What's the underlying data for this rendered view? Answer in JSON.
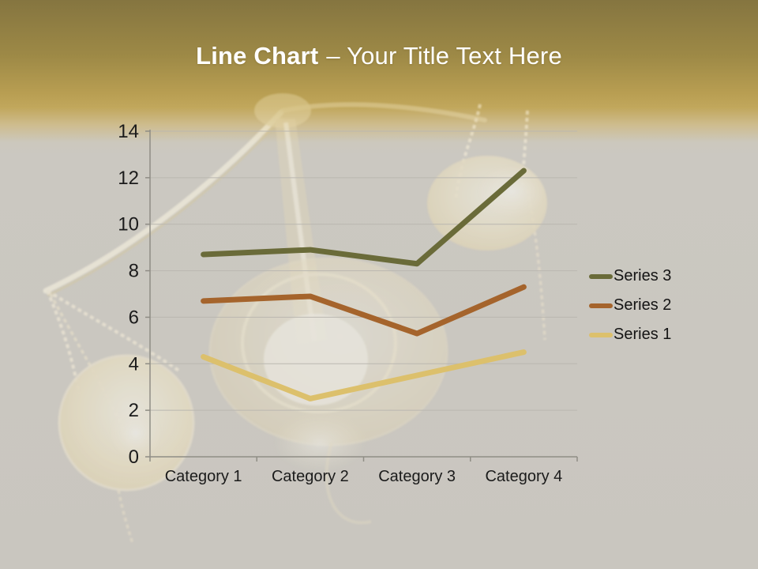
{
  "slide": {
    "title": {
      "bold": "Line Chart",
      "rest": "– Your Title Text Here"
    },
    "colors": {
      "band_top": "#857540",
      "band_gold": "#c1a75c",
      "body_bg": "#cbc8c1",
      "title_text": "#ffffff",
      "axis": "#8f8d85",
      "gridline": "#bab7b0",
      "tick_text": "#1b1b1b"
    },
    "decoration": "faded-golden-scales-of-justice-photo"
  },
  "chart_data": {
    "type": "line",
    "stacked": true,
    "title": "",
    "xlabel": "",
    "ylabel": "",
    "categories": [
      "Category 1",
      "Category 2",
      "Category 3",
      "Category 4"
    ],
    "series": [
      {
        "name": "Series 1",
        "color": "#dcc06c",
        "values": [
          4.3,
          2.5,
          3.5,
          4.5
        ],
        "plotted": [
          4.3,
          2.5,
          3.5,
          4.5
        ]
      },
      {
        "name": "Series 2",
        "color": "#a5642c",
        "values": [
          2.4,
          4.4,
          1.8,
          2.8
        ],
        "plotted": [
          6.7,
          6.9,
          5.3,
          7.3
        ]
      },
      {
        "name": "Series 3",
        "color": "#6a6b39",
        "values": [
          2.0,
          2.0,
          3.0,
          5.0
        ],
        "plotted": [
          8.7,
          8.9,
          8.3,
          12.3
        ]
      }
    ],
    "ylim": [
      0,
      14
    ],
    "y_ticks": [
      0,
      2,
      4,
      6,
      8,
      10,
      12,
      14
    ],
    "grid": true,
    "line_width": 7,
    "legend": {
      "position": "right",
      "order": [
        "Series 3",
        "Series 2",
        "Series 1"
      ]
    }
  }
}
